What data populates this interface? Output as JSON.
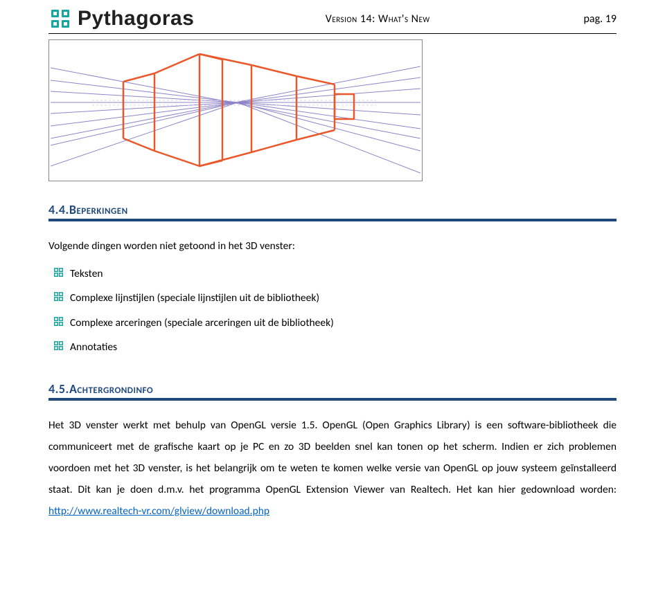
{
  "header": {
    "logo_text": "Pythagoras",
    "center_text": "Version 14: What's New",
    "page_label": "pag. 19"
  },
  "colors": {
    "accent": "#1f497d",
    "logo_teal": "#1aa6a0",
    "diagram_orange": "#e8582b",
    "diagram_violet": "#8c84c9",
    "link": "#0563c1",
    "border_gray": "#888888",
    "background": "#ffffff"
  },
  "section1": {
    "heading": "4.4.Beperkingen",
    "intro": "Volgende dingen worden niet getoond in het 3D venster:",
    "bullets": [
      "Teksten",
      "Complexe lijnstijlen (speciale lijnstijlen uit de bibliotheek)",
      "Complexe arceringen (speciale arceringen uit de bibliotheek)",
      "Annotaties"
    ]
  },
  "section2": {
    "heading": "4.5.Achtergrondinfo",
    "body_pre": "Het 3D venster werkt met behulp van OpenGL versie 1.5. OpenGL (Open Graphics Library) is een software-bibliotheek die communiceert met de grafische kaart op je PC en zo 3D beelden snel kan tonen op het scherm. Indien er zich problemen voordoen met het 3D venster, is het belangrijk om te weten te komen welke versie van OpenGL op jouw systeem geïnstalleerd staat. Dit kan je doen d.m.v. het programma OpenGL Extension Viewer van Realtech. Het kan hier gedownload worden: ",
    "link_text": "http://www.realtech-vr.com/glview/download.php",
    "link_href": "http://www.realtech-vr.com/glview/download.php"
  }
}
